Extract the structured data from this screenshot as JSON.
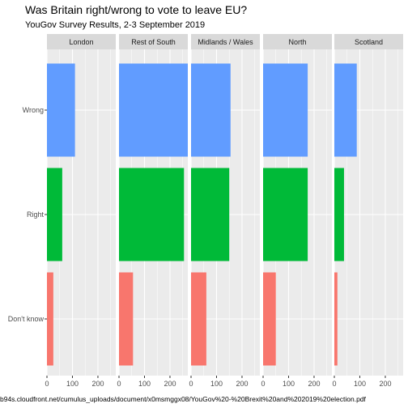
{
  "title": "Was Britain right/wrong to vote to leave EU?",
  "subtitle": "YouGov Survey Results, 2-3 September 2019",
  "caption": "b94s.cloudfront.net/cumulus_uploads/document/x0msmggx08/YouGov%20-%20Brexit%20and%202019%20election.pdf",
  "colors": {
    "panel_bg": "#ebebeb",
    "grid": "#ffffff",
    "strip_bg": "#d9d9d9",
    "Wrong": "#619cff",
    "Right": "#00ba38",
    "Don't know": "#f8766d"
  },
  "chart_data": {
    "type": "bar",
    "orientation": "horizontal",
    "title": "Was Britain right/wrong to vote to leave EU?",
    "subtitle": "YouGov Survey Results, 2-3 September 2019",
    "xlabel": "",
    "ylabel": "",
    "categories": [
      "Wrong",
      "Right",
      "Don't know"
    ],
    "xlim": [
      0,
      270
    ],
    "xticks": [
      0,
      100,
      200
    ],
    "grid": true,
    "facets": [
      {
        "name": "London",
        "values": [
          110,
          60,
          25
        ]
      },
      {
        "name": "Rest of South",
        "values": [
          270,
          255,
          55
        ]
      },
      {
        "name": "Midlands / Wales",
        "values": [
          155,
          150,
          60
        ]
      },
      {
        "name": "North",
        "values": [
          175,
          175,
          50
        ]
      },
      {
        "name": "Scotland",
        "values": [
          88,
          38,
          12
        ]
      }
    ]
  }
}
